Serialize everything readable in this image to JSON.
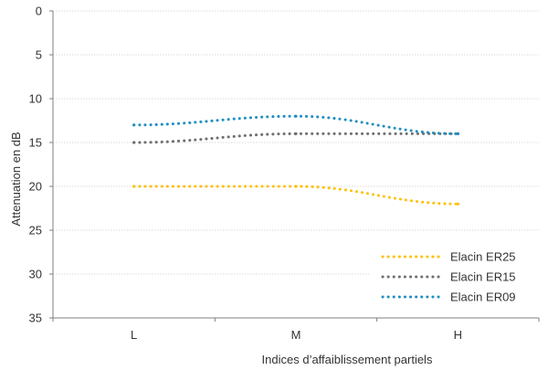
{
  "chart_data": {
    "type": "line",
    "title": "",
    "xlabel": "Indices d’affaiblissement partiels",
    "ylabel": "Attenuation en dB",
    "categories": [
      "L",
      "M",
      "H"
    ],
    "ylim": [
      0,
      35
    ],
    "y_inverted": true,
    "yticks": [
      0,
      5,
      10,
      15,
      20,
      25,
      30,
      35
    ],
    "grid": true,
    "legend_position": "bottom-right",
    "line_style": "dotted",
    "series": [
      {
        "name": "Elacin ER25",
        "color": "#FFC000",
        "values": [
          20,
          20,
          22
        ]
      },
      {
        "name": "Elacin ER15",
        "color": "#6F6F6F",
        "values": [
          15,
          14,
          14
        ]
      },
      {
        "name": "Elacin ER09",
        "color": "#1F8FC0",
        "values": [
          13,
          12,
          14
        ]
      }
    ]
  }
}
